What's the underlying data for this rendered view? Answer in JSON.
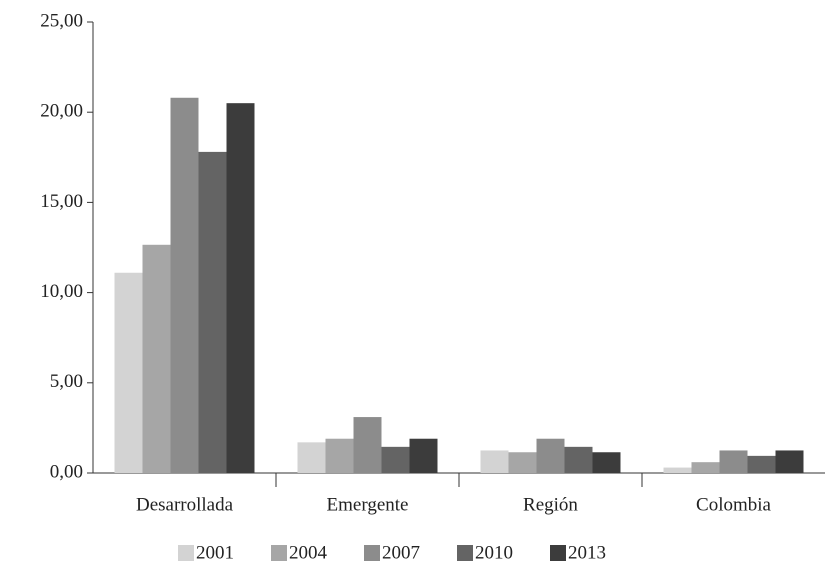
{
  "chart_data": {
    "type": "bar",
    "categories": [
      "Desarrollada",
      "Emergente",
      "Región",
      "Colombia"
    ],
    "series": [
      {
        "name": "2001",
        "color": "#d3d3d3",
        "values": [
          11.1,
          1.7,
          1.25,
          0.3
        ]
      },
      {
        "name": "2004",
        "color": "#a6a6a6",
        "values": [
          12.65,
          1.9,
          1.15,
          0.6
        ]
      },
      {
        "name": "2007",
        "color": "#8c8c8c",
        "values": [
          20.8,
          3.1,
          1.9,
          1.25
        ]
      },
      {
        "name": "2010",
        "color": "#646464",
        "values": [
          17.8,
          1.45,
          1.45,
          0.95
        ]
      },
      {
        "name": "2013",
        "color": "#3c3c3c",
        "values": [
          20.5,
          1.9,
          1.15,
          1.25
        ]
      }
    ],
    "ylim": [
      0,
      25
    ],
    "yticks": [
      {
        "value": 0,
        "label": "0,00"
      },
      {
        "value": 5,
        "label": "5,00"
      },
      {
        "value": 10,
        "label": "10,00"
      },
      {
        "value": 15,
        "label": "15,00"
      },
      {
        "value": 20,
        "label": "20,00"
      },
      {
        "value": 25,
        "label": "25,00"
      }
    ],
    "legend": "bottom"
  }
}
